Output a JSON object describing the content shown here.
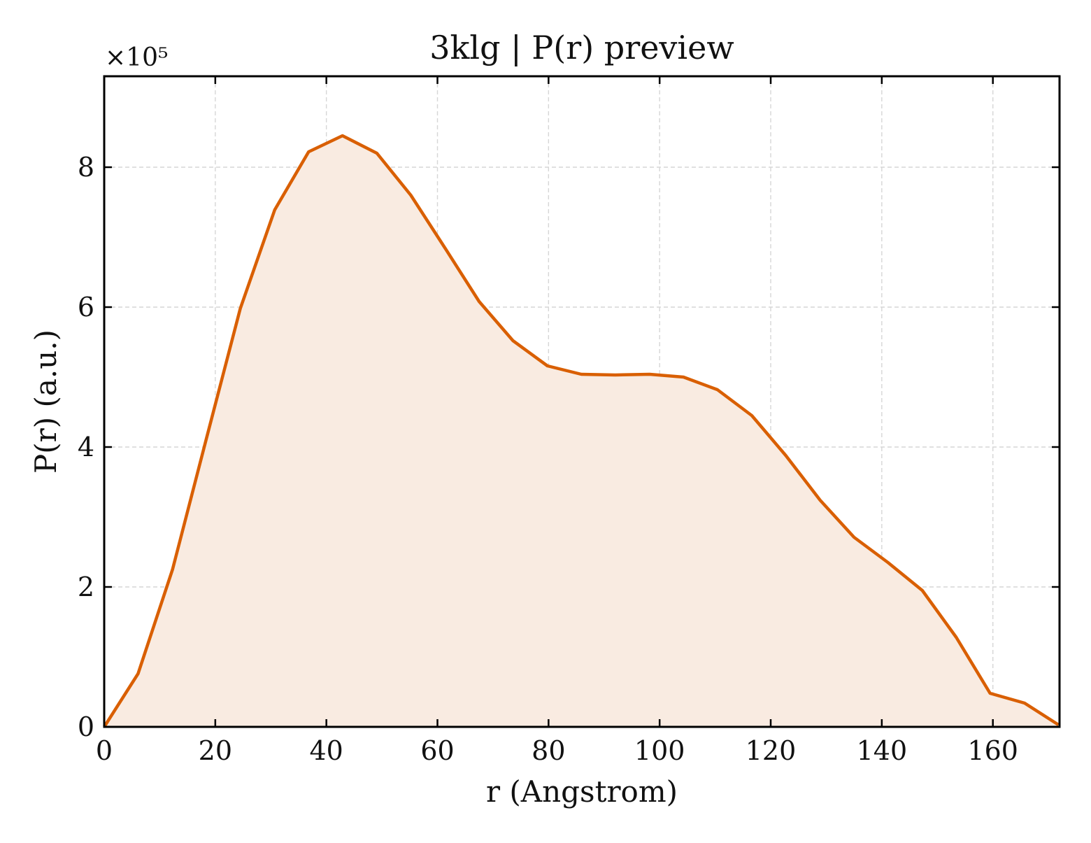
{
  "chart_data": {
    "type": "area",
    "title": "3klg | P(r) preview",
    "xlabel": "r (Angstrom)",
    "ylabel": "P(r) (a.u.)",
    "y_scale_label": "×10⁵",
    "xlim": [
      0,
      172
    ],
    "ylim": [
      0,
      9.3
    ],
    "xticks": [
      0,
      20,
      40,
      60,
      80,
      100,
      120,
      140,
      160
    ],
    "yticks": [
      0,
      2,
      4,
      6,
      8
    ],
    "grid": true,
    "line_color": "#d95f02",
    "fill_color": "#f9ebe1",
    "x": [
      0,
      6.1,
      12.3,
      18.4,
      24.5,
      30.7,
      36.8,
      42.9,
      49.1,
      55.2,
      61.4,
      67.5,
      73.6,
      79.8,
      85.9,
      92.0,
      98.2,
      104.3,
      110.4,
      116.6,
      122.7,
      128.9,
      135.0,
      141.1,
      147.3,
      153.4,
      159.5,
      165.7,
      171.8
    ],
    "y": [
      0,
      0.76,
      2.25,
      4.12,
      5.98,
      7.39,
      8.22,
      8.45,
      8.2,
      7.6,
      6.84,
      6.08,
      5.52,
      5.16,
      5.04,
      5.03,
      5.04,
      5.0,
      4.82,
      4.45,
      3.88,
      3.24,
      2.71,
      2.35,
      1.95,
      1.28,
      0.48,
      0.34,
      0.03
    ]
  }
}
